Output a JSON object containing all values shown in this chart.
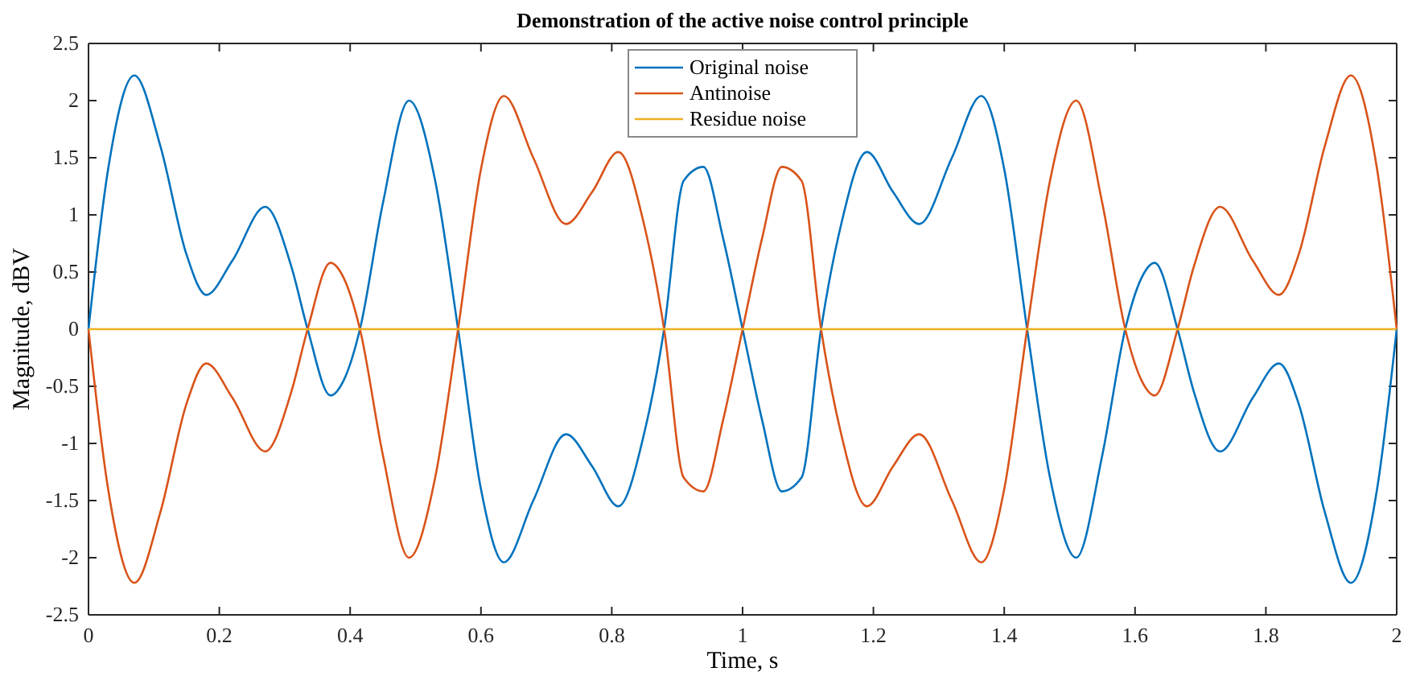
{
  "chart_data": {
    "type": "line",
    "title": "Demonstration of the active noise control principle",
    "xlabel": "Time, s",
    "ylabel": "Magnitude, dBV",
    "x": [
      0,
      0.03,
      0.07,
      0.11,
      0.15,
      0.18,
      0.22,
      0.27,
      0.31,
      0.335,
      0.37,
      0.39,
      0.415,
      0.45,
      0.49,
      0.53,
      0.565,
      0.6,
      0.635,
      0.68,
      0.73,
      0.77,
      0.81,
      0.85,
      0.88,
      0.91,
      0.94,
      0.97,
      1.0,
      1.03,
      1.06,
      1.09,
      1.12,
      1.15,
      1.19,
      1.23,
      1.27,
      1.32,
      1.365,
      1.4,
      1.435,
      1.47,
      1.51,
      1.55,
      1.585,
      1.61,
      1.63,
      1.665,
      1.69,
      1.73,
      1.78,
      1.82,
      1.85,
      1.89,
      1.93,
      1.97,
      2.0
    ],
    "series": [
      {
        "name": "Original noise",
        "color": "#0072bd",
        "values": [
          0,
          1.4,
          2.22,
          1.6,
          0.65,
          0.3,
          0.6,
          1.07,
          0.55,
          0,
          -0.58,
          -0.45,
          0,
          1.1,
          2.0,
          1.3,
          0,
          -1.4,
          -2.04,
          -1.5,
          -0.92,
          -1.2,
          -1.55,
          -0.9,
          0,
          1.3,
          1.42,
          0.8,
          0,
          -0.8,
          -1.42,
          -1.3,
          0,
          0.9,
          1.55,
          1.2,
          0.92,
          1.5,
          2.04,
          1.4,
          0,
          -1.3,
          -2.0,
          -1.1,
          0,
          0.45,
          0.58,
          0,
          -0.55,
          -1.07,
          -0.6,
          -0.3,
          -0.65,
          -1.6,
          -2.22,
          -1.4,
          0
        ]
      },
      {
        "name": "Antinoise",
        "color": "#d95319",
        "values": [
          0,
          -1.4,
          -2.22,
          -1.6,
          -0.65,
          -0.3,
          -0.6,
          -1.07,
          -0.55,
          0,
          0.58,
          0.45,
          0,
          -1.1,
          -2.0,
          -1.3,
          0,
          1.4,
          2.04,
          1.5,
          0.92,
          1.2,
          1.55,
          0.9,
          0,
          -1.3,
          -1.42,
          -0.8,
          0,
          0.8,
          1.42,
          1.3,
          0,
          -0.9,
          -1.55,
          -1.2,
          -0.92,
          -1.5,
          -2.04,
          -1.4,
          0,
          1.3,
          2.0,
          1.1,
          0,
          -0.45,
          -0.58,
          0,
          0.55,
          1.07,
          0.6,
          0.3,
          0.65,
          1.6,
          2.22,
          1.4,
          0
        ]
      },
      {
        "name": "Residue noise",
        "color": "#edb120",
        "x": [
          0,
          2
        ],
        "values": [
          0,
          0
        ]
      }
    ],
    "xlim": [
      0,
      2
    ],
    "xticks": [
      0,
      0.2,
      0.4,
      0.6,
      0.8,
      1,
      1.2,
      1.4,
      1.6,
      1.8,
      2
    ],
    "ylim": [
      -2.5,
      2.5
    ],
    "yticks": [
      -2.5,
      -2,
      -1.5,
      -1,
      -0.5,
      0,
      0.5,
      1,
      1.5,
      2,
      2.5
    ],
    "grid": false,
    "legend": "top",
    "marker": "none",
    "line_style": "solid"
  }
}
